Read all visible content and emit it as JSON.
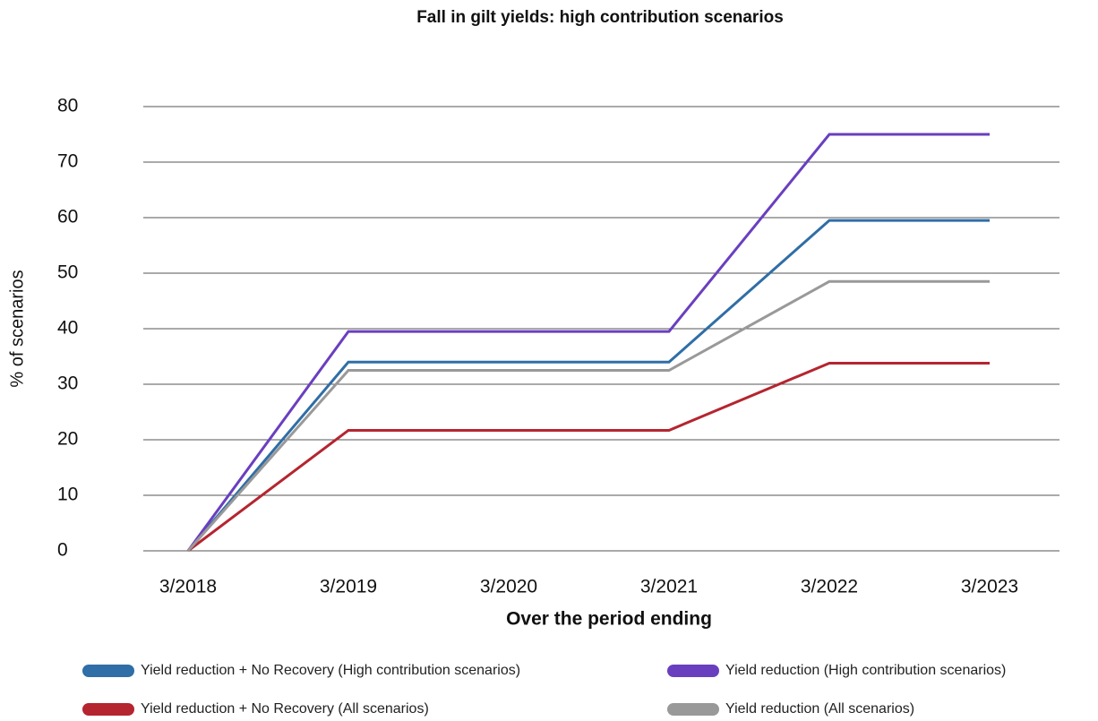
{
  "chart_data": {
    "type": "line",
    "title": "Fall in gilt yields: high contribution scenarios",
    "x_label": "Over the period ending",
    "y_label": "% of scenarios",
    "categories": [
      "3/2018",
      "3/2019",
      "3/2020",
      "3/2021",
      "3/2022",
      "3/2023"
    ],
    "series": [
      {
        "name": "Yield reduction + No Recovery (High contribution scenarios)",
        "color": "#2f6ea6",
        "values": [
          0,
          34,
          34,
          34,
          59.5,
          59.5
        ]
      },
      {
        "name": "Yield reduction (High contribution scenarios)",
        "color": "#6a3fbf",
        "values": [
          0,
          39.5,
          39.5,
          39.5,
          75,
          75
        ]
      },
      {
        "name": "Yield reduction + No Recovery (All scenarios)",
        "color": "#b5252f",
        "values": [
          0,
          21.7,
          21.7,
          21.7,
          33.8,
          33.8
        ]
      },
      {
        "name": "Yield reduction (All scenarios)",
        "color": "#999999",
        "values": [
          0,
          32.5,
          32.5,
          32.5,
          48.5,
          48.5
        ]
      }
    ],
    "ylim": [
      0,
      80
    ],
    "yticks": [
      0,
      10,
      20,
      30,
      40,
      50,
      60,
      70,
      80
    ],
    "grid": true
  }
}
